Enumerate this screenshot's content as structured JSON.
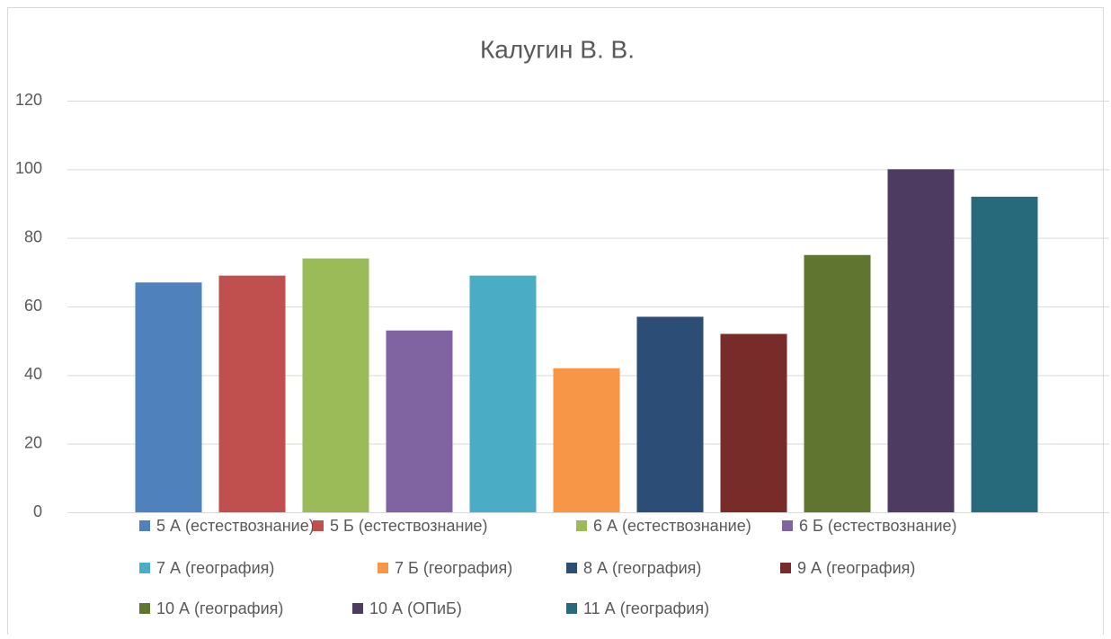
{
  "chart_data": {
    "type": "bar",
    "title": "Калугин В. В.",
    "categories": [
      null
    ],
    "series": [
      {
        "name": "5 А (естествознание)",
        "color": "#4f81bd",
        "values": [
          67
        ]
      },
      {
        "name": "5 Б (естествознание)",
        "color": "#c0504d",
        "values": [
          69
        ]
      },
      {
        "name": "6 А (естествознание)",
        "color": "#9bbb59",
        "values": [
          74
        ]
      },
      {
        "name": "6 Б (естествознание)",
        "color": "#8064a2",
        "values": [
          53
        ]
      },
      {
        "name": "7 А (география)",
        "color": "#4bacc6",
        "values": [
          69
        ]
      },
      {
        "name": "7 Б (география)",
        "color": "#f79646",
        "values": [
          42
        ]
      },
      {
        "name": "8 А (география)",
        "color": "#2c4d75",
        "values": [
          57
        ]
      },
      {
        "name": "9 А (география)",
        "color": "#772c2a",
        "values": [
          52
        ]
      },
      {
        "name": "10 А (география)",
        "color": "#5f7530",
        "values": [
          75
        ]
      },
      {
        "name": "10 А (ОПиБ)",
        "color": "#4d3b62",
        "values": [
          100
        ]
      },
      {
        "name": "11 А (география)",
        "color": "#276a7c",
        "values": [
          92
        ]
      }
    ],
    "ylim": [
      0,
      120
    ],
    "yticks": [
      0,
      20,
      40,
      60,
      80,
      100,
      120
    ],
    "grid": true,
    "legend": "bottom"
  }
}
